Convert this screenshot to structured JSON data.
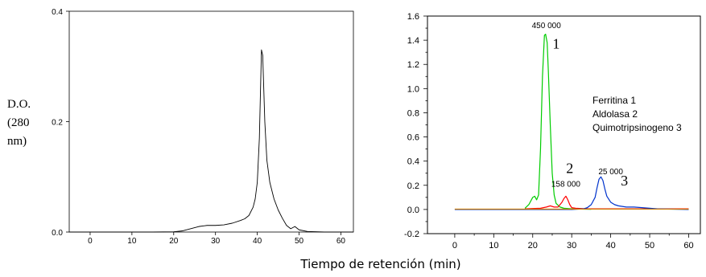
{
  "shared_xlabel": "Tiempo de retención (min)",
  "chart_data": [
    {
      "type": "line",
      "title": "",
      "ylabel_lines": [
        "D.O.",
        "(280",
        "nm)"
      ],
      "xlim": [
        -5,
        63
      ],
      "ylim": [
        0,
        0.4
      ],
      "xticks": [
        0,
        10,
        20,
        30,
        40,
        50,
        60
      ],
      "xtick_labels": [
        "0",
        "10",
        "20",
        "30",
        "40",
        "50",
        "60"
      ],
      "yticks": [
        0,
        0.2,
        0.4
      ],
      "ytick_labels": [
        "0.0",
        "0.2",
        "0.4"
      ],
      "grid": false,
      "series": [
        {
          "color": "#000000",
          "x": [
            -5,
            5,
            15,
            20,
            22,
            24,
            26,
            28,
            30,
            32,
            34,
            36,
            37,
            38,
            39,
            39.5,
            40,
            40.5,
            41,
            41.3,
            41.8,
            42.3,
            43,
            44,
            45,
            46,
            47,
            48,
            49,
            50,
            52,
            56,
            63
          ],
          "y": [
            0.0,
            0.0,
            0.0,
            0.0005,
            0.002,
            0.006,
            0.01,
            0.012,
            0.012,
            0.013,
            0.016,
            0.021,
            0.024,
            0.03,
            0.045,
            0.06,
            0.09,
            0.17,
            0.33,
            0.32,
            0.2,
            0.13,
            0.09,
            0.06,
            0.04,
            0.025,
            0.012,
            0.006,
            0.01,
            0.004,
            0.001,
            0.0,
            0.0
          ]
        }
      ]
    },
    {
      "type": "line",
      "title": "",
      "xlim": [
        -7,
        63
      ],
      "ylim": [
        -0.2,
        1.6
      ],
      "xticks": [
        0,
        10,
        20,
        30,
        40,
        50,
        60
      ],
      "xtick_labels": [
        "0",
        "10",
        "20",
        "30",
        "40",
        "50",
        "60"
      ],
      "yticks": [
        -0.2,
        0.0,
        0.2,
        0.4,
        0.6,
        0.8,
        1.0,
        1.2,
        1.4,
        1.6
      ],
      "ytick_labels": [
        "-0.2",
        "0.0",
        "0.2",
        "0.4",
        "0.6",
        "0.8",
        "1.0",
        "1.2",
        "1.4",
        "1.6"
      ],
      "grid": false,
      "legend_lines": [
        "Ferritina 1",
        "Aldolasa 2",
        "Quimotripsinogeno 3"
      ],
      "legend_position": "upper-right",
      "peak_labels": [
        {
          "text": "450 000",
          "x": 23.5,
          "y": 1.5
        },
        {
          "text": "158 000",
          "x": 28.5,
          "y": 0.19
        },
        {
          "text": "25 000",
          "x": 40,
          "y": 0.29
        }
      ],
      "peak_numbers": [
        {
          "text": "1",
          "x": 26,
          "y": 1.33
        },
        {
          "text": "2",
          "x": 29.5,
          "y": 0.3
        },
        {
          "text": "3",
          "x": 43.5,
          "y": 0.2
        }
      ],
      "series": [
        {
          "name": "",
          "color": "#00cc00",
          "x": [
            18,
            19,
            20,
            20.5,
            21,
            21.5,
            22,
            22.5,
            23,
            23.3,
            23.7,
            24,
            24.5,
            25,
            25.5,
            26,
            27,
            28,
            30,
            35
          ],
          "y": [
            0.01,
            0.04,
            0.1,
            0.11,
            0.08,
            0.12,
            0.5,
            1.1,
            1.44,
            1.45,
            1.38,
            1.15,
            0.7,
            0.3,
            0.12,
            0.05,
            0.02,
            0.01,
            0.005,
            0.002
          ]
        },
        {
          "name": "",
          "color": "#ff0000",
          "x": [
            18,
            22,
            23.5,
            24.5,
            25.5,
            26.5,
            27.5,
            28,
            28.5,
            29,
            29.5,
            30,
            31,
            34,
            40,
            50,
            60
          ],
          "y": [
            0.005,
            0.01,
            0.02,
            0.03,
            0.02,
            0.02,
            0.06,
            0.09,
            0.11,
            0.08,
            0.04,
            0.015,
            0.01,
            0.005,
            0.005,
            0.005,
            0.005
          ]
        },
        {
          "name": "",
          "color": "#0033cc",
          "x": [
            0,
            10,
            20,
            30,
            33,
            34,
            35,
            36,
            36.5,
            37,
            37.5,
            38,
            38.5,
            39,
            40,
            41,
            42,
            44,
            46,
            48,
            52,
            60
          ],
          "y": [
            0.0,
            0.0,
            0.0,
            0.0,
            0.005,
            0.015,
            0.04,
            0.1,
            0.18,
            0.25,
            0.27,
            0.24,
            0.17,
            0.11,
            0.06,
            0.04,
            0.03,
            0.02,
            0.02,
            0.015,
            0.005,
            0.0
          ]
        },
        {
          "name": "",
          "color": "#cc7a00",
          "x": [
            0,
            60
          ],
          "y": [
            0.003,
            0.003
          ]
        }
      ]
    }
  ]
}
